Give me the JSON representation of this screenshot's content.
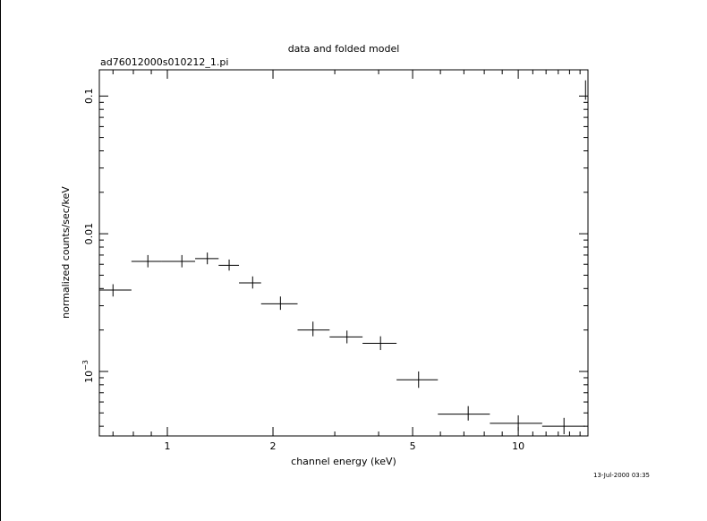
{
  "chart_data": {
    "type": "scatter",
    "title": "data and folded model",
    "subtitle": "ad76012000s010212_1.pi",
    "xlabel": "channel energy (keV)",
    "ylabel": "normalized counts/sec/keV",
    "timestamp": "13-Jul-2000 03:35",
    "x_scale": "log",
    "y_scale": "log",
    "xlim": [
      0.64,
      15.8
    ],
    "ylim": [
      0.00034,
      0.155
    ],
    "grid": false,
    "x_ticks": [
      {
        "value": 1,
        "label": "1"
      },
      {
        "value": 2,
        "label": "2"
      },
      {
        "value": 5,
        "label": "5"
      },
      {
        "value": 10,
        "label": "10"
      }
    ],
    "y_ticks": [
      {
        "value": 0.1,
        "label": "0.1"
      },
      {
        "value": 0.01,
        "label": "0.01"
      },
      {
        "value": 0.001,
        "label": "10",
        "exponent": "−3"
      }
    ],
    "points": [
      {
        "x": 0.7,
        "xlo": 0.64,
        "xhi": 0.79,
        "y": 0.0039,
        "ylo": 0.0035,
        "yhi": 0.0043
      },
      {
        "x": 0.88,
        "xlo": 0.79,
        "xhi": 0.96,
        "y": 0.0063,
        "ylo": 0.0057,
        "yhi": 0.007
      },
      {
        "x": 1.1,
        "xlo": 0.96,
        "xhi": 1.2,
        "y": 0.0063,
        "ylo": 0.0057,
        "yhi": 0.007
      },
      {
        "x": 1.3,
        "xlo": 1.2,
        "xhi": 1.4,
        "y": 0.0066,
        "ylo": 0.006,
        "yhi": 0.0073
      },
      {
        "x": 1.5,
        "xlo": 1.4,
        "xhi": 1.6,
        "y": 0.0059,
        "ylo": 0.0054,
        "yhi": 0.0065
      },
      {
        "x": 1.75,
        "xlo": 1.6,
        "xhi": 1.85,
        "y": 0.0044,
        "ylo": 0.004,
        "yhi": 0.0049
      },
      {
        "x": 2.1,
        "xlo": 1.85,
        "xhi": 2.35,
        "y": 0.0031,
        "ylo": 0.0028,
        "yhi": 0.0035
      },
      {
        "x": 2.6,
        "xlo": 2.35,
        "xhi": 2.9,
        "y": 0.002,
        "ylo": 0.0018,
        "yhi": 0.0023
      },
      {
        "x": 3.25,
        "xlo": 2.9,
        "xhi": 3.6,
        "y": 0.00178,
        "ylo": 0.0016,
        "yhi": 0.00198
      },
      {
        "x": 4.05,
        "xlo": 3.6,
        "xhi": 4.5,
        "y": 0.0016,
        "ylo": 0.00143,
        "yhi": 0.0018
      },
      {
        "x": 5.2,
        "xlo": 4.5,
        "xhi": 5.9,
        "y": 0.00087,
        "ylo": 0.00076,
        "yhi": 0.001
      },
      {
        "x": 7.2,
        "xlo": 5.9,
        "xhi": 8.3,
        "y": 0.00049,
        "ylo": 0.00044,
        "yhi": 0.00056
      },
      {
        "x": 10.0,
        "xlo": 8.3,
        "xhi": 11.7,
        "y": 0.00042,
        "ylo": 0.00037,
        "yhi": 0.00048
      },
      {
        "x": 13.5,
        "xlo": 11.7,
        "xhi": 15.5,
        "y": 0.0004,
        "ylo": 0.00035,
        "yhi": 0.00046
      }
    ],
    "extra_marks": [
      {
        "x": 15.55,
        "ylo": 0.094,
        "yhi": 0.13
      }
    ]
  }
}
